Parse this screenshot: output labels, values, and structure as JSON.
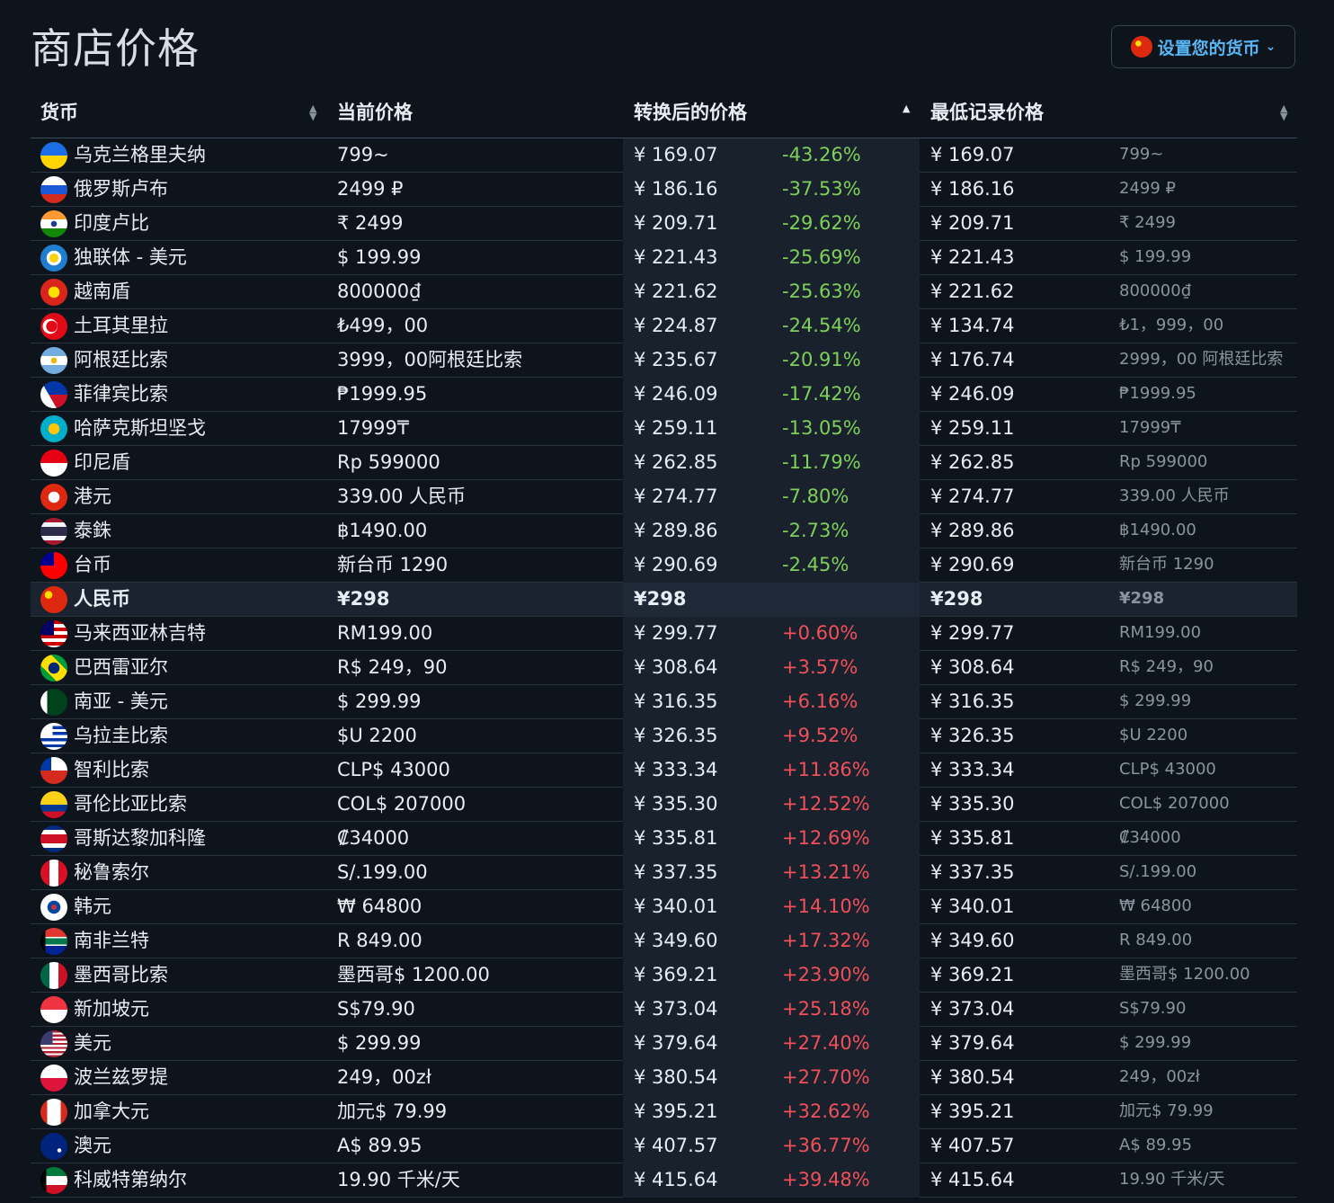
{
  "title": "商店价格",
  "currency_button": {
    "label": "设置您的货币",
    "icon": "cn-flag"
  },
  "headers": {
    "currency": "货币",
    "current_price": "当前价格",
    "converted_price": "转换后的价格",
    "lowest_price": "最低记录价格"
  },
  "colors": {
    "negative": "#7fd05a",
    "positive": "#f0505a",
    "accent": "#58b6f5"
  },
  "rows": [
    {
      "flag": "ua",
      "name": "乌克兰格里夫纳",
      "price": "799~",
      "conv": "¥ 169.07",
      "pct": "-43.26%",
      "low": "¥ 169.07",
      "low_local": "799~"
    },
    {
      "flag": "ru",
      "name": "俄罗斯卢布",
      "price": "2499 ₽",
      "conv": "¥ 186.16",
      "pct": "-37.53%",
      "low": "¥ 186.16",
      "low_local": "2499 ₽"
    },
    {
      "flag": "in",
      "name": "印度卢比",
      "price": "₹ 2499",
      "conv": "¥ 209.71",
      "pct": "-29.62%",
      "low": "¥ 209.71",
      "low_local": "₹ 2499"
    },
    {
      "flag": "cis",
      "name": "独联体 - 美元",
      "price": "$ 199.99",
      "conv": "¥ 221.43",
      "pct": "-25.69%",
      "low": "¥ 221.43",
      "low_local": "$ 199.99"
    },
    {
      "flag": "vn",
      "name": "越南盾",
      "price": "800000₫",
      "conv": "¥ 221.62",
      "pct": "-25.63%",
      "low": "¥ 221.62",
      "low_local": "800000₫"
    },
    {
      "flag": "tr",
      "name": "土耳其里拉",
      "price": "₺499，00",
      "conv": "¥ 224.87",
      "pct": "-24.54%",
      "low": "¥ 134.74",
      "low_local": "₺1，999，00"
    },
    {
      "flag": "ar",
      "name": "阿根廷比索",
      "price": "3999，00阿根廷比索",
      "conv": "¥ 235.67",
      "pct": "-20.91%",
      "low": "¥ 176.74",
      "low_local": "2999，00 阿根廷比索"
    },
    {
      "flag": "ph",
      "name": "菲律宾比索",
      "price": "₱1999.95",
      "conv": "¥ 246.09",
      "pct": "-17.42%",
      "low": "¥ 246.09",
      "low_local": "₱1999.95"
    },
    {
      "flag": "kz",
      "name": "哈萨克斯坦坚戈",
      "price": "17999₸",
      "conv": "¥ 259.11",
      "pct": "-13.05%",
      "low": "¥ 259.11",
      "low_local": "17999₸"
    },
    {
      "flag": "id",
      "name": "印尼盾",
      "price": "Rp 599000",
      "conv": "¥ 262.85",
      "pct": "-11.79%",
      "low": "¥ 262.85",
      "low_local": "Rp 599000"
    },
    {
      "flag": "hk",
      "name": "港元",
      "price": "339.00 人民币",
      "conv": "¥ 274.77",
      "pct": "-7.80%",
      "low": "¥ 274.77",
      "low_local": "339.00 人民币"
    },
    {
      "flag": "th",
      "name": "泰銖",
      "price": "฿1490.00",
      "conv": "¥ 289.86",
      "pct": "-2.73%",
      "low": "¥ 289.86",
      "low_local": "฿1490.00"
    },
    {
      "flag": "tw",
      "name": "台币",
      "price": "新台币 1290",
      "conv": "¥ 290.69",
      "pct": "-2.45%",
      "low": "¥ 290.69",
      "low_local": "新台币 1290"
    },
    {
      "flag": "cn",
      "name": "人民币",
      "price": "¥298",
      "conv": "¥298",
      "pct": "",
      "low": "¥298",
      "low_local": "¥298",
      "base": true
    },
    {
      "flag": "my",
      "name": "马来西亚林吉特",
      "price": "RM199.00",
      "conv": "¥ 299.77",
      "pct": "+0.60%",
      "low": "¥ 299.77",
      "low_local": "RM199.00"
    },
    {
      "flag": "br",
      "name": "巴西雷亚尔",
      "price": "R$ 249，90",
      "conv": "¥ 308.64",
      "pct": "+3.57%",
      "low": "¥ 308.64",
      "low_local": "R$ 249，90"
    },
    {
      "flag": "pk",
      "name": "南亚 - 美元",
      "price": "$ 299.99",
      "conv": "¥ 316.35",
      "pct": "+6.16%",
      "low": "¥ 316.35",
      "low_local": "$ 299.99"
    },
    {
      "flag": "uy",
      "name": "乌拉圭比索",
      "price": "$U 2200",
      "conv": "¥ 326.35",
      "pct": "+9.52%",
      "low": "¥ 326.35",
      "low_local": "$U 2200"
    },
    {
      "flag": "cl",
      "name": "智利比索",
      "price": "CLP$ 43000",
      "conv": "¥ 333.34",
      "pct": "+11.86%",
      "low": "¥ 333.34",
      "low_local": "CLP$ 43000"
    },
    {
      "flag": "co",
      "name": "哥伦比亚比索",
      "price": "COL$ 207000",
      "conv": "¥ 335.30",
      "pct": "+12.52%",
      "low": "¥ 335.30",
      "low_local": "COL$ 207000"
    },
    {
      "flag": "cr",
      "name": "哥斯达黎加科隆",
      "price": "₡34000",
      "conv": "¥ 335.81",
      "pct": "+12.69%",
      "low": "¥ 335.81",
      "low_local": "₡34000"
    },
    {
      "flag": "pe",
      "name": "秘鲁索尔",
      "price": "S/.199.00",
      "conv": "¥ 337.35",
      "pct": "+13.21%",
      "low": "¥ 337.35",
      "low_local": "S/.199.00"
    },
    {
      "flag": "kr",
      "name": "韩元",
      "price": "₩ 64800",
      "conv": "¥ 340.01",
      "pct": "+14.10%",
      "low": "¥ 340.01",
      "low_local": "₩ 64800"
    },
    {
      "flag": "za",
      "name": "南非兰特",
      "price": "R 849.00",
      "conv": "¥ 349.60",
      "pct": "+17.32%",
      "low": "¥ 349.60",
      "low_local": "R 849.00"
    },
    {
      "flag": "mx",
      "name": "墨西哥比索",
      "price": "墨西哥$ 1200.00",
      "conv": "¥ 369.21",
      "pct": "+23.90%",
      "low": "¥ 369.21",
      "low_local": "墨西哥$ 1200.00"
    },
    {
      "flag": "sg",
      "name": "新加坡元",
      "price": "S$79.90",
      "conv": "¥ 373.04",
      "pct": "+25.18%",
      "low": "¥ 373.04",
      "low_local": "S$79.90"
    },
    {
      "flag": "us",
      "name": "美元",
      "price": "$ 299.99",
      "conv": "¥ 379.64",
      "pct": "+27.40%",
      "low": "¥ 379.64",
      "low_local": "$ 299.99"
    },
    {
      "flag": "pl",
      "name": "波兰兹罗提",
      "price": "249，00zł",
      "conv": "¥ 380.54",
      "pct": "+27.70%",
      "low": "¥ 380.54",
      "low_local": "249，00zł"
    },
    {
      "flag": "ca",
      "name": "加拿大元",
      "price": "加元$ 79.99",
      "conv": "¥ 395.21",
      "pct": "+32.62%",
      "low": "¥ 395.21",
      "low_local": "加元$ 79.99"
    },
    {
      "flag": "au",
      "name": "澳元",
      "price": "A$ 89.95",
      "conv": "¥ 407.57",
      "pct": "+36.77%",
      "low": "¥ 407.57",
      "low_local": "A$ 89.95"
    },
    {
      "flag": "kw",
      "name": "科威特第纳尔",
      "price": "19.90 千米/天",
      "conv": "¥ 415.64",
      "pct": "+39.48%",
      "low": "¥ 415.64",
      "low_local": "19.90 千米/天"
    }
  ]
}
